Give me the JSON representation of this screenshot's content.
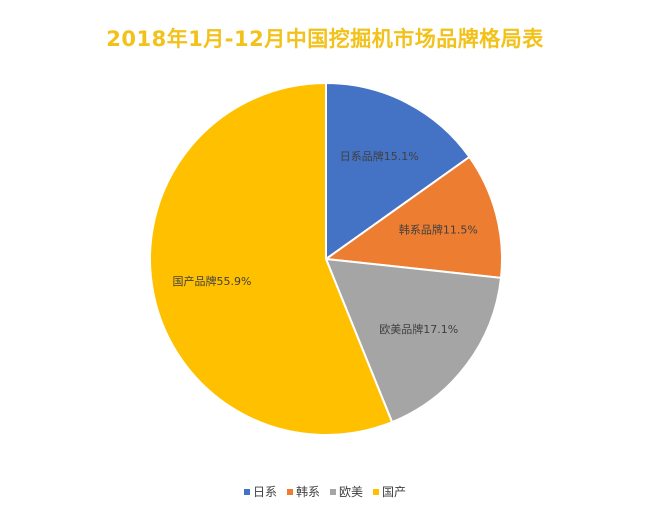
{
  "chart_data": {
    "type": "pie",
    "title": "2018年1月-12月中国挖掘机市场品牌格局表",
    "slices": [
      {
        "name": "日系",
        "label": "日系品牌",
        "value_label": "15.1%",
        "value": 15.1,
        "color": "#4472c4"
      },
      {
        "name": "韩系",
        "label": "韩系品牌",
        "value_label": "11.5%",
        "value": 11.5,
        "color": "#ed7d31"
      },
      {
        "name": "欧美",
        "label": "欧美品牌",
        "value_label": "17.1%",
        "value": 17.1,
        "color": "#a5a5a5"
      },
      {
        "name": "国产",
        "label": "国产品牌",
        "value_label": "55.9%",
        "value": 55.9,
        "color": "#ffc000"
      }
    ],
    "legend_position": "bottom",
    "start_angle": "12 o'clock",
    "direction": "clockwise"
  }
}
